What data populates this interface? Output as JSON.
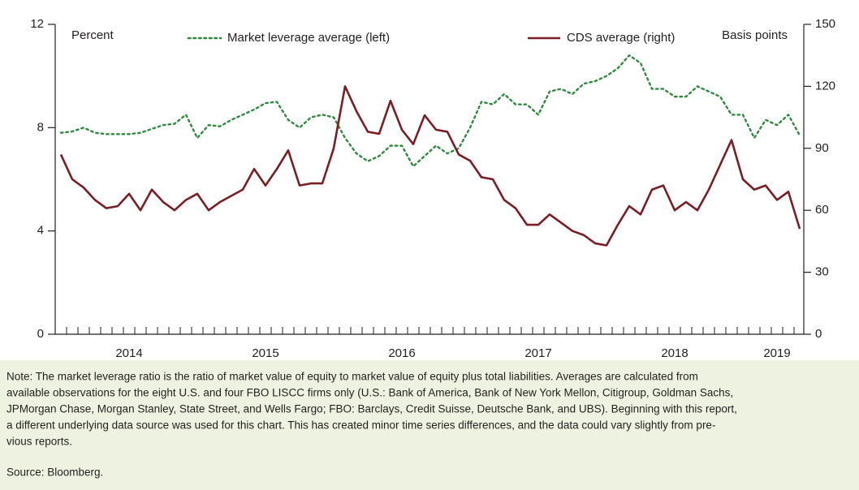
{
  "chart_data": {
    "type": "line",
    "y_label": "Percent",
    "y2_label": "Basis points",
    "categories": [
      null,
      null,
      null,
      null,
      null,
      null,
      "2014",
      null,
      null,
      null,
      null,
      null,
      null,
      null,
      null,
      null,
      null,
      null,
      "2015",
      null,
      null,
      null,
      null,
      null,
      null,
      null,
      null,
      null,
      null,
      null,
      "2016",
      null,
      null,
      null,
      null,
      null,
      null,
      null,
      null,
      null,
      null,
      null,
      "2017",
      null,
      null,
      null,
      null,
      null,
      null,
      null,
      null,
      null,
      null,
      null,
      "2018",
      null,
      null,
      null,
      null,
      null,
      null,
      null,
      null,
      "2019",
      null,
      null
    ],
    "series": [
      {
        "name": "Market leverage average (left)",
        "color": "#2e8b3e",
        "style": "dotted",
        "values": [
          7.8,
          7.85,
          8.0,
          7.8,
          7.75,
          7.75,
          7.75,
          7.8,
          7.95,
          8.1,
          8.15,
          8.5,
          7.6,
          8.1,
          8.05,
          8.3,
          8.5,
          8.7,
          8.95,
          9.0,
          8.3,
          8.0,
          8.4,
          8.5,
          8.4,
          7.6,
          7.0,
          6.7,
          6.9,
          7.3,
          7.3,
          6.5,
          6.9,
          7.3,
          7.0,
          7.2,
          8.0,
          9.0,
          8.9,
          9.3,
          8.9,
          8.9,
          8.5,
          9.4,
          9.5,
          9.3,
          9.7,
          9.8,
          10.0,
          10.3,
          10.8,
          10.5,
          9.5,
          9.5,
          9.2,
          9.2,
          9.6,
          9.4,
          9.2,
          8.5,
          8.5,
          7.6,
          8.3,
          8.1,
          8.5,
          7.7
        ]
      },
      {
        "name": "CDS average (right)",
        "color": "#7b1e23",
        "style": "solid",
        "axis": "y2",
        "values": [
          87,
          75,
          71,
          65,
          61,
          62,
          68,
          60,
          70,
          64,
          60,
          65,
          68,
          60,
          64,
          67,
          70,
          80,
          72,
          80,
          89,
          72,
          73,
          73,
          90,
          120,
          108,
          98,
          97,
          113,
          99,
          92,
          106,
          99,
          98,
          87,
          84,
          76,
          75,
          65,
          61,
          53,
          53,
          58,
          54,
          50,
          48,
          44,
          43,
          53,
          62,
          58,
          70,
          72,
          60,
          64,
          60,
          70,
          82,
          94,
          75,
          70,
          72,
          65,
          69,
          51
        ]
      }
    ],
    "ylim": [
      0,
      12
    ],
    "yticks": [
      0,
      4,
      8,
      12
    ],
    "y2lim": [
      0,
      150
    ],
    "y2ticks": [
      0,
      30,
      60,
      90,
      120,
      150
    ],
    "note": [
      "Note: The market leverage ratio is the ratio of market value of equity to market value of equity plus total liabilities. Averages are calculated from",
      "available observations for the eight U.S. and four FBO LISCC firms only (U.S.: Bank of America, Bank of New York Mellon, Citigroup, Goldman Sachs,",
      "JPMorgan Chase, Morgan Stanley, State Street, and Wells Fargo; FBO: Barclays, Credit Suisse, Deutsche Bank, and UBS). Beginning with this report,",
      "a different underlying data source was used for this chart. This has created minor time series differences, and the data could vary slightly from pre-",
      "vious reports."
    ],
    "source": "Source: Bloomberg."
  }
}
